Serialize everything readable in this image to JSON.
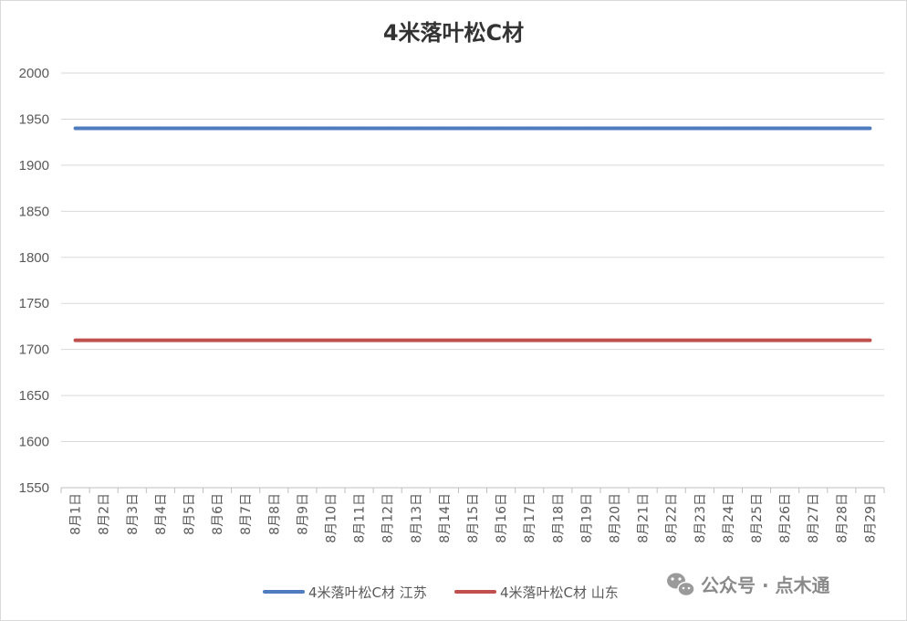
{
  "chart_data": {
    "type": "line",
    "title": "4米落叶松C材",
    "xlabel": "",
    "ylabel": "",
    "ylim": [
      1550,
      2000
    ],
    "yticks": [
      1550,
      1600,
      1650,
      1700,
      1750,
      1800,
      1850,
      1900,
      1950,
      2000
    ],
    "categories": [
      "8月1日",
      "8月2日",
      "8月3日",
      "8月4日",
      "8月5日",
      "8月6日",
      "8月7日",
      "8月8日",
      "8月9日",
      "8月10日",
      "8月11日",
      "8月12日",
      "8月13日",
      "8月14日",
      "8月15日",
      "8月16日",
      "8月17日",
      "8月18日",
      "8月19日",
      "8月20日",
      "8月21日",
      "8月22日",
      "8月23日",
      "8月24日",
      "8月25日",
      "8月26日",
      "8月27日",
      "8月28日",
      "8月29日"
    ],
    "series": [
      {
        "name": "4米落叶松C材 江苏",
        "color": "#4f7bbf",
        "values": [
          1940,
          1940,
          1940,
          1940,
          1940,
          1940,
          1940,
          1940,
          1940,
          1940,
          1940,
          1940,
          1940,
          1940,
          1940,
          1940,
          1940,
          1940,
          1940,
          1940,
          1940,
          1940,
          1940,
          1940,
          1940,
          1940,
          1940,
          1940,
          1940
        ]
      },
      {
        "name": "4米落叶松C材 山东",
        "color": "#c0504d",
        "values": [
          1710,
          1710,
          1710,
          1710,
          1710,
          1710,
          1710,
          1710,
          1710,
          1710,
          1710,
          1710,
          1710,
          1710,
          1710,
          1710,
          1710,
          1710,
          1710,
          1710,
          1710,
          1710,
          1710,
          1710,
          1710,
          1710,
          1710,
          1710,
          1710
        ]
      }
    ],
    "grid": true,
    "legend_position": "bottom"
  },
  "watermark": {
    "text": "公众号 · 点木通",
    "icon": "wechat-icon"
  },
  "colors": {
    "grid": "#d9d9d9",
    "axis": "#bfbfbf"
  }
}
